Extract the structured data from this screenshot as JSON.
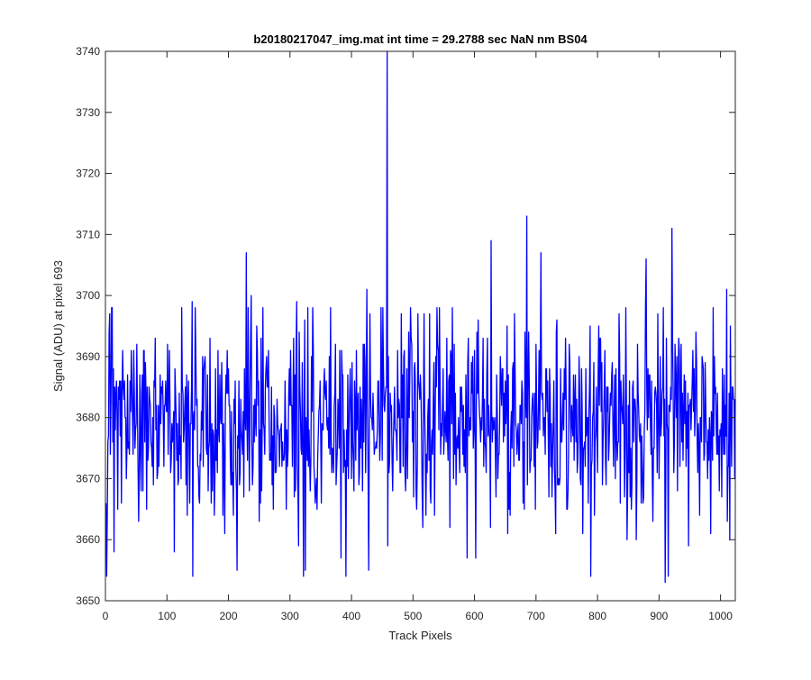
{
  "chart_data": {
    "type": "line",
    "title": "b20180217047_img.mat int time = 29.2788 sec  NaN nm BS04",
    "xlabel": "Track Pixels",
    "ylabel": "Signal (ADU) at pixel 693",
    "xlim": [
      0,
      1024
    ],
    "ylim": [
      3650,
      3740
    ],
    "xticks": [
      0,
      100,
      200,
      300,
      400,
      500,
      600,
      700,
      800,
      900,
      1000
    ],
    "xtick_labels": [
      "0",
      "100",
      "200",
      "300",
      "400",
      "500",
      "600",
      "700",
      "800",
      "900",
      "1000"
    ],
    "yticks": [
      3650,
      3660,
      3670,
      3680,
      3690,
      3700,
      3710,
      3720,
      3730,
      3740
    ],
    "ytick_labels": [
      "3650",
      "3660",
      "3670",
      "3680",
      "3690",
      "3700",
      "3710",
      "3720",
      "3730",
      "3740"
    ],
    "grid": false,
    "legend": "none",
    "series": [
      {
        "color": "#0000ff",
        "x_start": 1,
        "x_step": 1,
        "mean": 3679,
        "std": 8,
        "seed": 47,
        "count": 1024,
        "notable_points": [
          {
            "x": 3,
            "y": 3664
          },
          {
            "x": 7,
            "y": 3697
          },
          {
            "x": 10,
            "y": 3698
          },
          {
            "x": 14,
            "y": 3658
          },
          {
            "x": 112,
            "y": 3658
          },
          {
            "x": 141,
            "y": 3699
          },
          {
            "x": 142,
            "y": 3654
          },
          {
            "x": 214,
            "y": 3655
          },
          {
            "x": 229,
            "y": 3707
          },
          {
            "x": 237,
            "y": 3700
          },
          {
            "x": 311,
            "y": 3699
          },
          {
            "x": 322,
            "y": 3654
          },
          {
            "x": 325,
            "y": 3655
          },
          {
            "x": 425,
            "y": 3701
          },
          {
            "x": 428,
            "y": 3655
          },
          {
            "x": 458,
            "y": 3740
          },
          {
            "x": 459,
            "y": 3659
          },
          {
            "x": 481,
            "y": 3697
          },
          {
            "x": 627,
            "y": 3709
          },
          {
            "x": 685,
            "y": 3713
          },
          {
            "x": 708,
            "y": 3707
          },
          {
            "x": 789,
            "y": 3654
          },
          {
            "x": 848,
            "y": 3660
          },
          {
            "x": 879,
            "y": 3706
          },
          {
            "x": 910,
            "y": 3653
          },
          {
            "x": 921,
            "y": 3711
          },
          {
            "x": 1010,
            "y": 3701
          },
          {
            "x": 1015,
            "y": 3660
          }
        ]
      }
    ]
  }
}
